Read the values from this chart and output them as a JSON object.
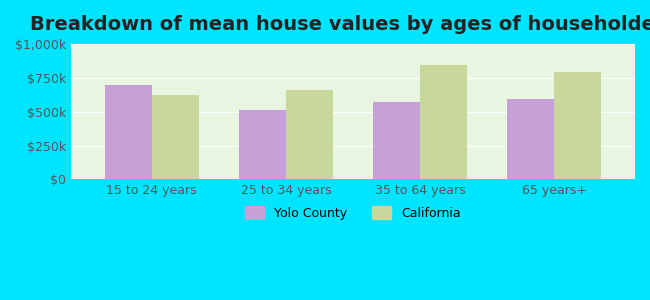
{
  "title": "Breakdown of mean house values by ages of householders",
  "categories": [
    "15 to 24 years",
    "25 to 34 years",
    "35 to 64 years",
    "65 years+"
  ],
  "yolo_county": [
    700000,
    515000,
    570000,
    590000
  ],
  "california": [
    620000,
    660000,
    845000,
    790000
  ],
  "yolo_color": "#c8a0d8",
  "california_color": "#c8d89a",
  "background_color": "#00e5ff",
  "plot_bg_color": "#e8f5e0",
  "ylim": [
    0,
    1000000
  ],
  "yticks": [
    0,
    250000,
    500000,
    750000,
    1000000
  ],
  "ytick_labels": [
    "$0",
    "$250k",
    "$500k",
    "$750k",
    "$1,000k"
  ],
  "legend_yolo": "Yolo County",
  "legend_california": "California",
  "bar_width": 0.35,
  "title_fontsize": 14,
  "tick_fontsize": 9,
  "legend_fontsize": 9
}
